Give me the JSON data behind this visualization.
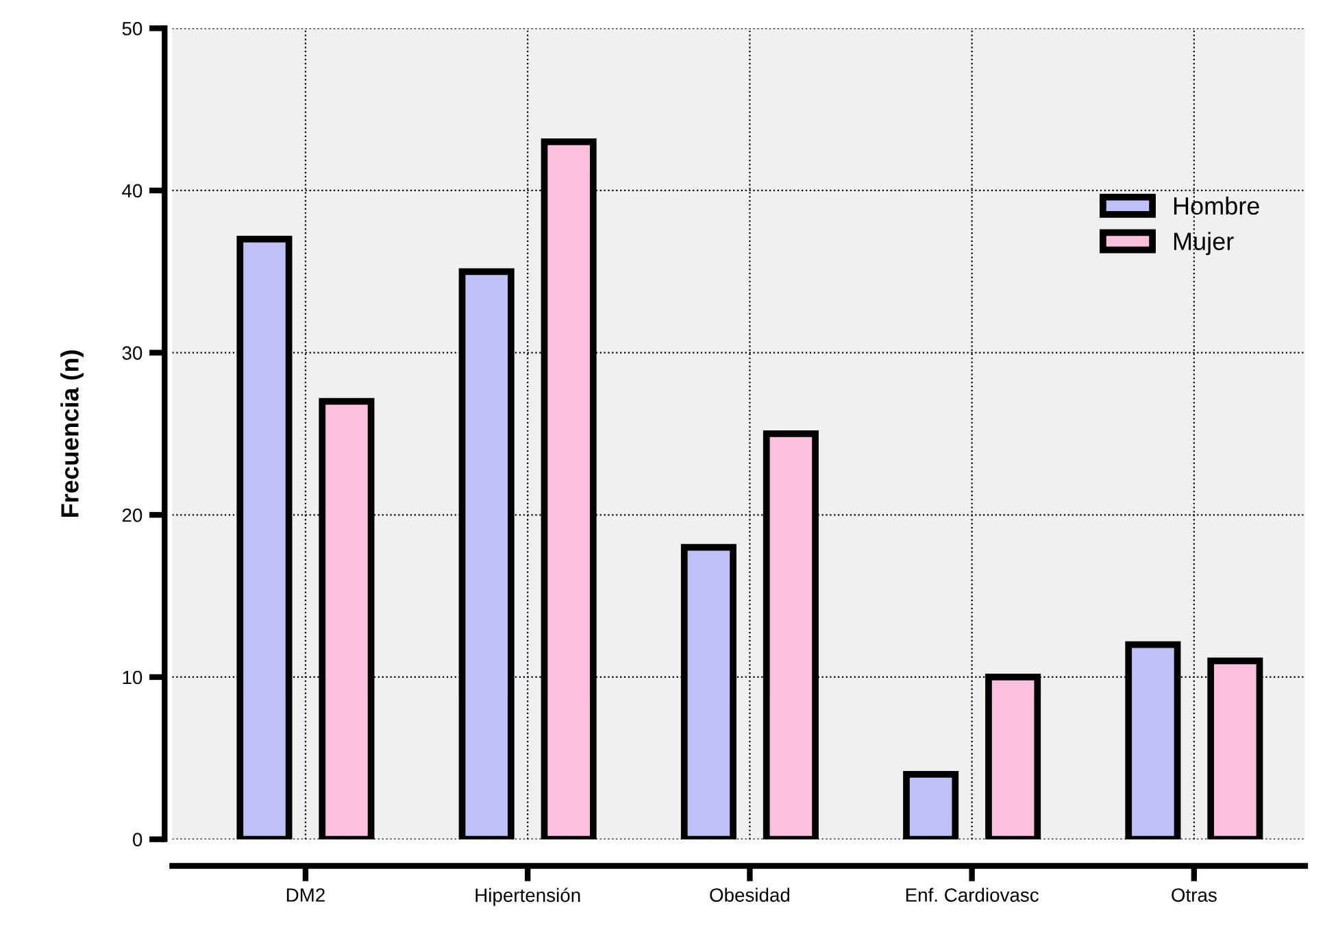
{
  "chart_data": {
    "type": "bar",
    "ylabel": "Frecuencia (n)",
    "categories": [
      "DM2",
      "Hipertensión",
      "Obesidad",
      "Enf. Cardiovasc",
      "Otras"
    ],
    "series": [
      {
        "name": "Hombre",
        "color": "#c0c0f8",
        "values": [
          37,
          35,
          18,
          4,
          12
        ]
      },
      {
        "name": "Mujer",
        "color": "#fcc0dc",
        "values": [
          27,
          43,
          25,
          10,
          11
        ]
      }
    ],
    "ylim": [
      0,
      50
    ],
    "yticks": [
      0,
      10,
      20,
      30,
      40,
      50
    ],
    "grid": true,
    "legend": "top right"
  }
}
